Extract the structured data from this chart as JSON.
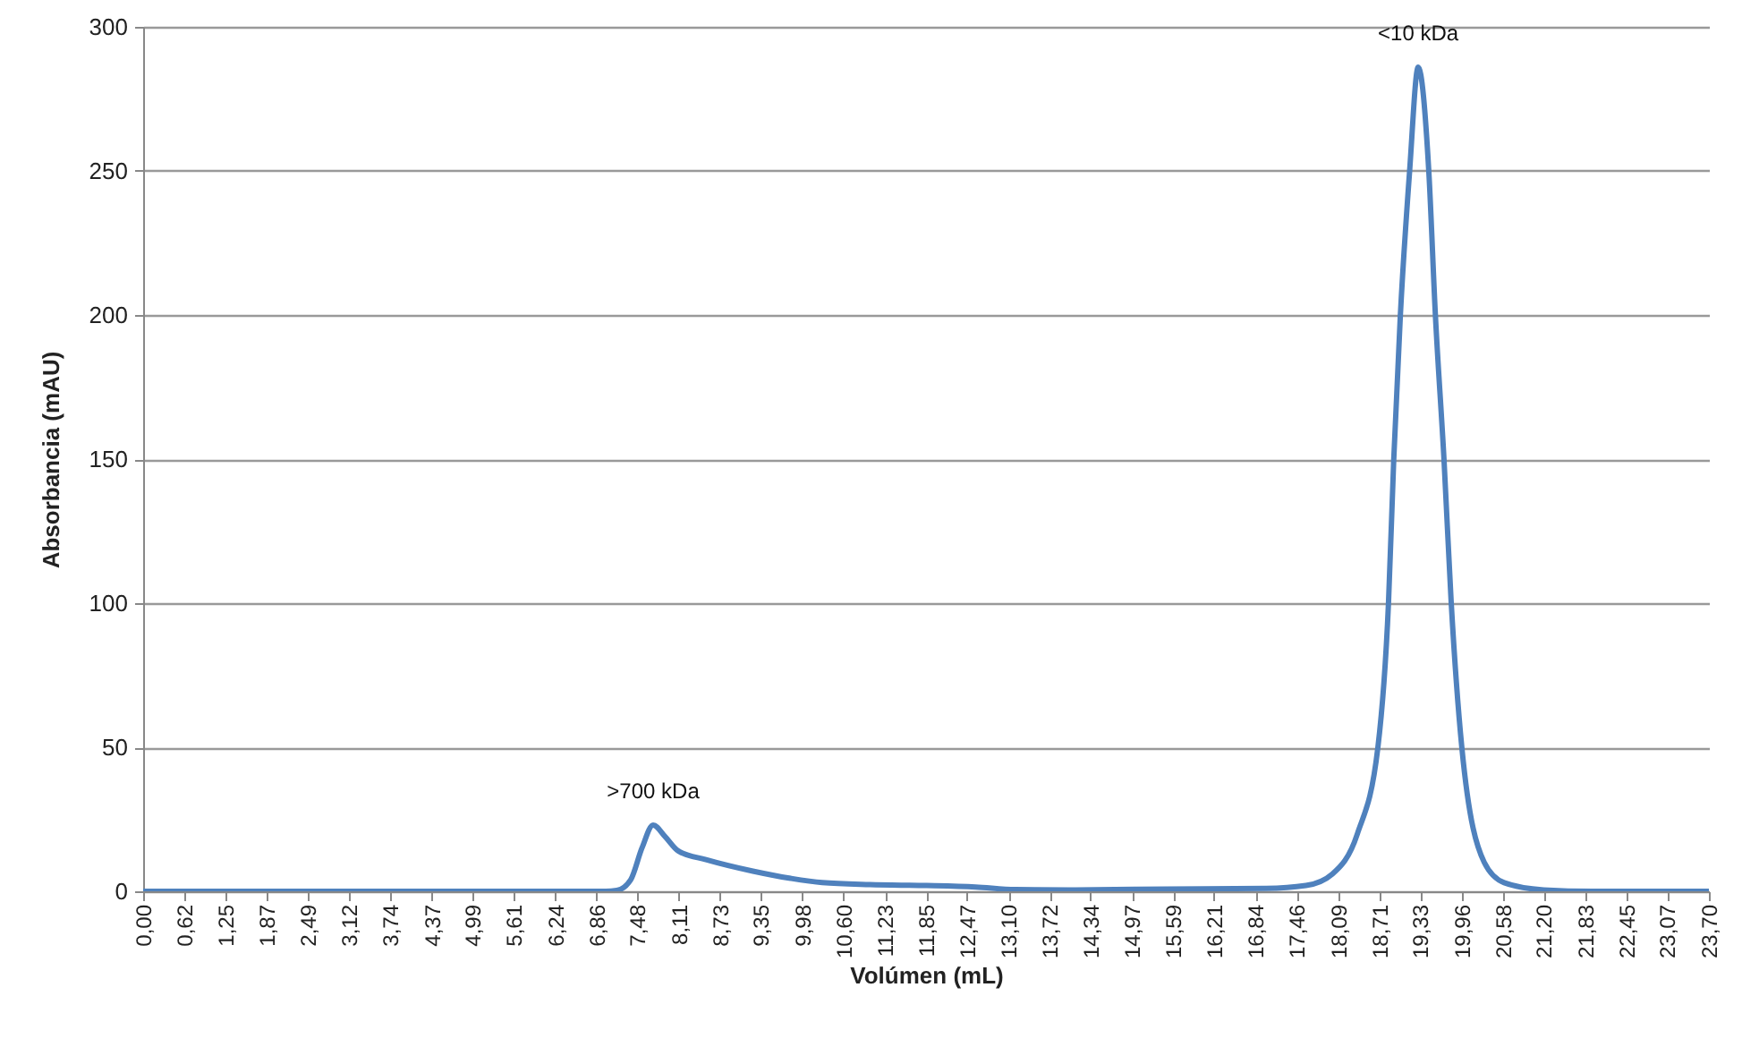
{
  "chart_data": {
    "type": "line",
    "xlabel": "Volúmen (mL)",
    "ylabel": "Absorbancia (mAU)",
    "x": [
      0,
      7.0,
      7.17,
      7.38,
      7.55,
      7.72,
      7.9,
      8.1,
      8.52,
      9.23,
      9.8,
      10.28,
      11.0,
      11.86,
      12.6,
      13.2,
      14.0,
      15.5,
      17.0,
      17.6,
      18.0,
      18.38,
      18.69,
      18.85,
      18.93,
      19.03,
      19.17,
      19.3,
      19.46,
      19.56,
      19.69,
      19.8,
      19.96,
      20.3,
      20.6,
      21.2,
      22.0,
      23.7
    ],
    "series": [
      {
        "color": "#4f81bd",
        "values": [
          0,
          0,
          0.3,
          4,
          15,
          23,
          19,
          14,
          11,
          7,
          4.5,
          3,
          2.3,
          2,
          1.5,
          0.6,
          0.5,
          0.8,
          1,
          2,
          6,
          20,
          50,
          100,
          150,
          200,
          250,
          286,
          250,
          200,
          150,
          100,
          50,
          10,
          3,
          0.5,
          0,
          0
        ]
      }
    ],
    "xlim": [
      0,
      23.7
    ],
    "ylim": [
      0,
      300
    ],
    "xticks": [
      {
        "value": 0,
        "label": "0,00"
      },
      {
        "value": 0.62,
        "label": "0,62"
      },
      {
        "value": 1.25,
        "label": "1,25"
      },
      {
        "value": 1.87,
        "label": "1,87"
      },
      {
        "value": 2.49,
        "label": "2,49"
      },
      {
        "value": 3.12,
        "label": "3,12"
      },
      {
        "value": 3.74,
        "label": "3,74"
      },
      {
        "value": 4.37,
        "label": "4,37"
      },
      {
        "value": 4.99,
        "label": "4,99"
      },
      {
        "value": 5.61,
        "label": "5,61"
      },
      {
        "value": 6.24,
        "label": "6,24"
      },
      {
        "value": 6.86,
        "label": "6,86"
      },
      {
        "value": 7.48,
        "label": "7,48"
      },
      {
        "value": 8.11,
        "label": "8,11"
      },
      {
        "value": 8.73,
        "label": "8,73"
      },
      {
        "value": 9.35,
        "label": "9,35"
      },
      {
        "value": 9.98,
        "label": "9,98"
      },
      {
        "value": 10.6,
        "label": "10,60"
      },
      {
        "value": 11.23,
        "label": "11,23"
      },
      {
        "value": 11.85,
        "label": "11,85"
      },
      {
        "value": 12.47,
        "label": "12,47"
      },
      {
        "value": 13.1,
        "label": "13,10"
      },
      {
        "value": 13.72,
        "label": "13,72"
      },
      {
        "value": 14.34,
        "label": "14,34"
      },
      {
        "value": 14.97,
        "label": "14,97"
      },
      {
        "value": 15.59,
        "label": "15,59"
      },
      {
        "value": 16.21,
        "label": "16,21"
      },
      {
        "value": 16.84,
        "label": "16,84"
      },
      {
        "value": 17.46,
        "label": "17,46"
      },
      {
        "value": 18.09,
        "label": "18,09"
      },
      {
        "value": 18.71,
        "label": "18,71"
      },
      {
        "value": 19.33,
        "label": "19,33"
      },
      {
        "value": 19.96,
        "label": "19,96"
      },
      {
        "value": 20.58,
        "label": "20,58"
      },
      {
        "value": 21.2,
        "label": "21,20"
      },
      {
        "value": 21.83,
        "label": "21,83"
      },
      {
        "value": 22.45,
        "label": "22,45"
      },
      {
        "value": 23.07,
        "label": "23,07"
      },
      {
        "value": 23.7,
        "label": "23,70"
      }
    ],
    "yticks": [
      0,
      50,
      100,
      150,
      200,
      250,
      300
    ],
    "grid": "y",
    "marker": "none",
    "line_style": "solid",
    "annotations": [
      {
        "text": ">700 kDa",
        "x": 7.72,
        "y": 23
      },
      {
        "text": "<10 kDa",
        "x": 19.3,
        "y": 286
      }
    ]
  }
}
